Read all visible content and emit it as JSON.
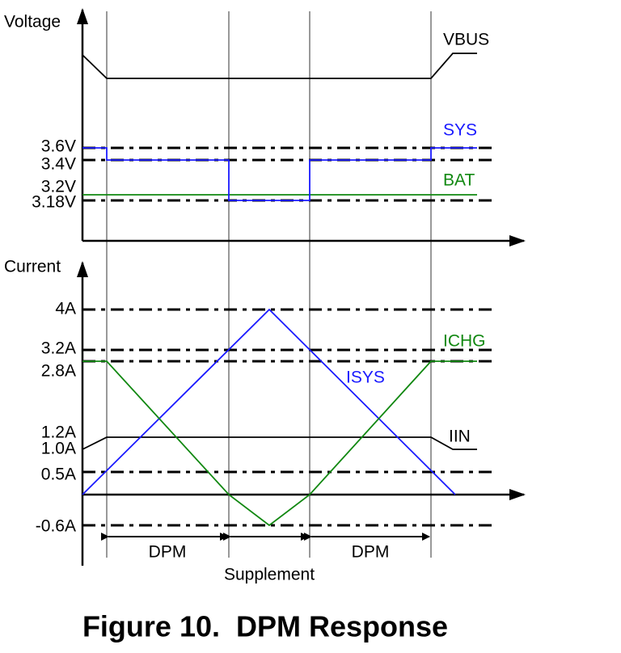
{
  "voltage_panel": {
    "axis_label": "Voltage",
    "levels": [
      "3.6V",
      "3.4V",
      "3.2V",
      "3.18V"
    ],
    "traces": {
      "vbus": "VBUS",
      "sys": "SYS",
      "bat": "BAT"
    }
  },
  "current_panel": {
    "axis_label": "Current",
    "levels": [
      "4A",
      "3.2A",
      "2.8A",
      "1.2A",
      "1.0A",
      "0.5A",
      "-0.6A"
    ],
    "traces": {
      "ichg": "ICHG",
      "isys": "ISYS",
      "iin": "IIN"
    }
  },
  "phases": [
    "DPM",
    "Supplement",
    "DPM"
  ],
  "caption": "Figure 10.  DPM Response"
}
